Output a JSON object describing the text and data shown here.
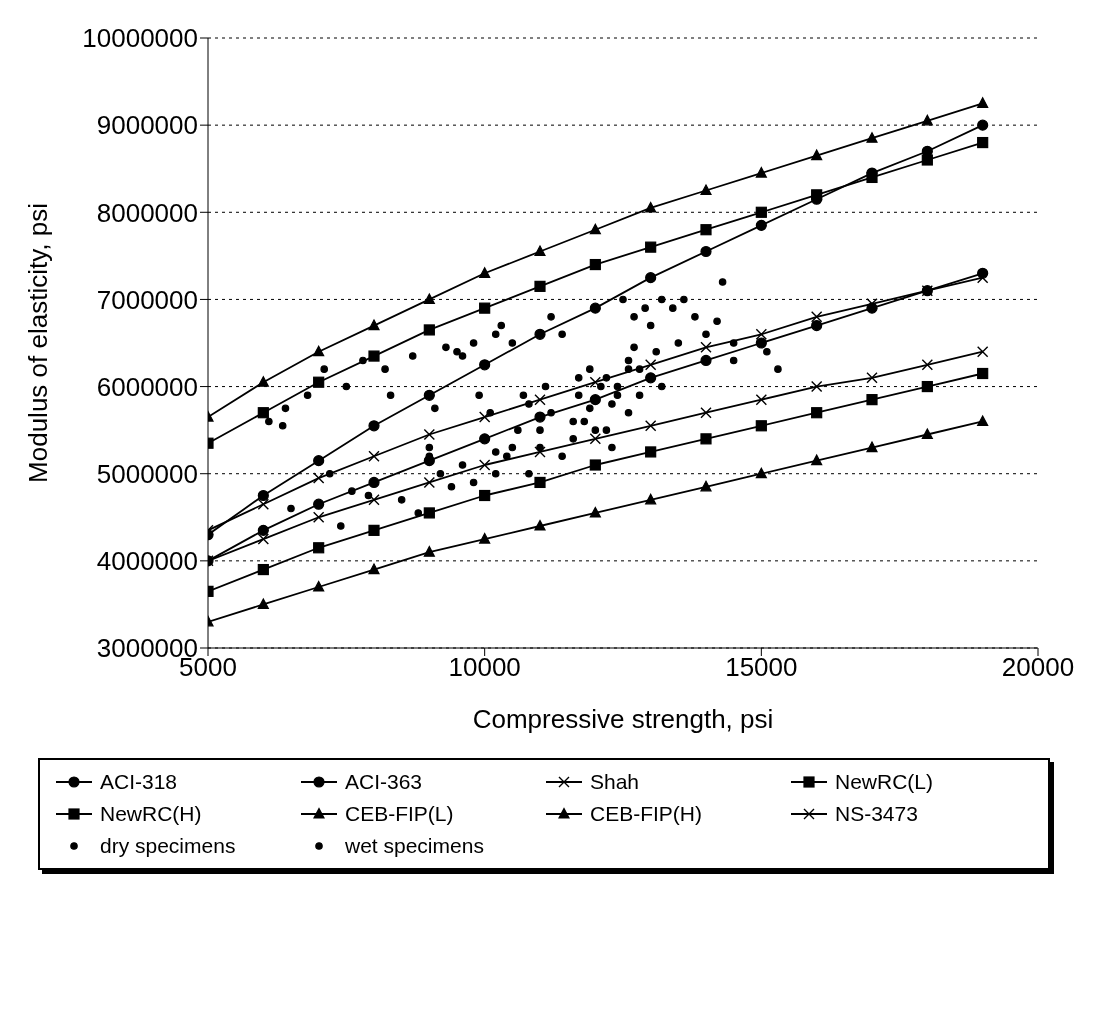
{
  "chart_data": {
    "type": "line",
    "xlabel": "Compressive strength, psi",
    "ylabel": "Modulus of elasticity, psi",
    "xlim": [
      5000,
      20000
    ],
    "xticks": [
      5000,
      10000,
      15000,
      20000
    ],
    "ylim": [
      3000000,
      10000000
    ],
    "yticks": [
      3000000,
      4000000,
      5000000,
      6000000,
      7000000,
      8000000,
      9000000,
      10000000
    ],
    "grid": "y",
    "legend": "bottom",
    "line_style": "solid",
    "x": [
      5000,
      6000,
      7000,
      8000,
      9000,
      10000,
      11000,
      12000,
      13000,
      14000,
      15000,
      16000,
      17000,
      18000,
      19000
    ],
    "series": [
      {
        "name": "ACI-318",
        "color": "#000000",
        "marker": "circle",
        "values": [
          4300000,
          4750000,
          5150000,
          5550000,
          5900000,
          6250000,
          6600000,
          6900000,
          7250000,
          7550000,
          7850000,
          8150000,
          8450000,
          8700000,
          9000000
        ]
      },
      {
        "name": "ACI-363",
        "color": "#000000",
        "marker": "circle",
        "values": [
          4000000,
          4350000,
          4650000,
          4900000,
          5150000,
          5400000,
          5650000,
          5850000,
          6100000,
          6300000,
          6500000,
          6700000,
          6900000,
          7100000,
          7300000
        ]
      },
      {
        "name": "Shah",
        "color": "#000000",
        "marker": "cross",
        "values": [
          4350000,
          4650000,
          4950000,
          5200000,
          5450000,
          5650000,
          5850000,
          6050000,
          6250000,
          6450000,
          6600000,
          6800000,
          6950000,
          7100000,
          7250000
        ]
      },
      {
        "name": "NewRC(L)",
        "color": "#000000",
        "marker": "square",
        "values": [
          3650000,
          3900000,
          4150000,
          4350000,
          4550000,
          4750000,
          4900000,
          5100000,
          5250000,
          5400000,
          5550000,
          5700000,
          5850000,
          6000000,
          6150000
        ]
      },
      {
        "name": "NewRC(H)",
        "color": "#000000",
        "marker": "square",
        "values": [
          5350000,
          5700000,
          6050000,
          6350000,
          6650000,
          6900000,
          7150000,
          7400000,
          7600000,
          7800000,
          8000000,
          8200000,
          8400000,
          8600000,
          8800000
        ]
      },
      {
        "name": "CEB-FIP(L)",
        "color": "#000000",
        "marker": "triangle",
        "values": [
          3300000,
          3500000,
          3700000,
          3900000,
          4100000,
          4250000,
          4400000,
          4550000,
          4700000,
          4850000,
          5000000,
          5150000,
          5300000,
          5450000,
          5600000
        ]
      },
      {
        "name": "CEB-FIP(H)",
        "color": "#000000",
        "marker": "triangle",
        "values": [
          5650000,
          6050000,
          6400000,
          6700000,
          7000000,
          7300000,
          7550000,
          7800000,
          8050000,
          8250000,
          8450000,
          8650000,
          8850000,
          9050000,
          9250000
        ]
      },
      {
        "name": "NS-3473",
        "color": "#000000",
        "marker": "cross",
        "values": [
          4000000,
          4250000,
          4500000,
          4700000,
          4900000,
          5100000,
          5250000,
          5400000,
          5550000,
          5700000,
          5850000,
          6000000,
          6100000,
          6250000,
          6400000
        ]
      },
      {
        "name": "dry specimens",
        "type": "scatter",
        "color": "#000000",
        "marker": "circle",
        "x": [
          6100,
          6400,
          6350,
          6800,
          7100,
          7500,
          7800,
          8200,
          8700,
          9300,
          9600,
          9800,
          10300,
          10500,
          7200,
          7600,
          7900,
          8500,
          8800,
          9000,
          9200,
          9400,
          9600,
          9800,
          10200,
          10200,
          10400,
          10600,
          10800,
          11000,
          11200,
          11400,
          11600,
          11800,
          11900,
          12200,
          12400,
          12600,
          12800,
          12700,
          13500,
          14200,
          14500,
          15100,
          15300,
          8300,
          9100,
          10700,
          11700,
          12300,
          6500,
          7400,
          10100,
          11100,
          13200
        ],
        "values": [
          5600000,
          5750000,
          5550000,
          5900000,
          6200000,
          6000000,
          6300000,
          6200000,
          6350000,
          6450000,
          6350000,
          6500000,
          6700000,
          6500000,
          5000000,
          4800000,
          4750000,
          4700000,
          4550000,
          5300000,
          5000000,
          4850000,
          5100000,
          4900000,
          5250000,
          5000000,
          5200000,
          5500000,
          5000000,
          5300000,
          5700000,
          5200000,
          5400000,
          5600000,
          5750000,
          5500000,
          6000000,
          6200000,
          5900000,
          6450000,
          6500000,
          6750000,
          6500000,
          6400000,
          6200000,
          5900000,
          5750000,
          5900000,
          6100000,
          5300000,
          4600000,
          4400000,
          5700000,
          6000000,
          6000000
        ]
      },
      {
        "name": "wet specimens",
        "type": "scatter",
        "color": "#000000",
        "marker": "circle",
        "x": [
          9500,
          9900,
          10200,
          10800,
          11200,
          11400,
          11700,
          11900,
          12000,
          12100,
          12300,
          12500,
          12600,
          12700,
          12900,
          13000,
          13200,
          13400,
          13600,
          13800,
          14000,
          14300,
          14500,
          12200,
          12400,
          11600,
          13100,
          12800,
          10500,
          9000,
          11000,
          12600
        ],
        "values": [
          6400000,
          5900000,
          6600000,
          5800000,
          6800000,
          6600000,
          5900000,
          6200000,
          5500000,
          6000000,
          5800000,
          7000000,
          6300000,
          6800000,
          6900000,
          6700000,
          7000000,
          6900000,
          7000000,
          6800000,
          6600000,
          7200000,
          6300000,
          6100000,
          5900000,
          5600000,
          6400000,
          6200000,
          5300000,
          5200000,
          5500000,
          5700000
        ]
      }
    ]
  }
}
